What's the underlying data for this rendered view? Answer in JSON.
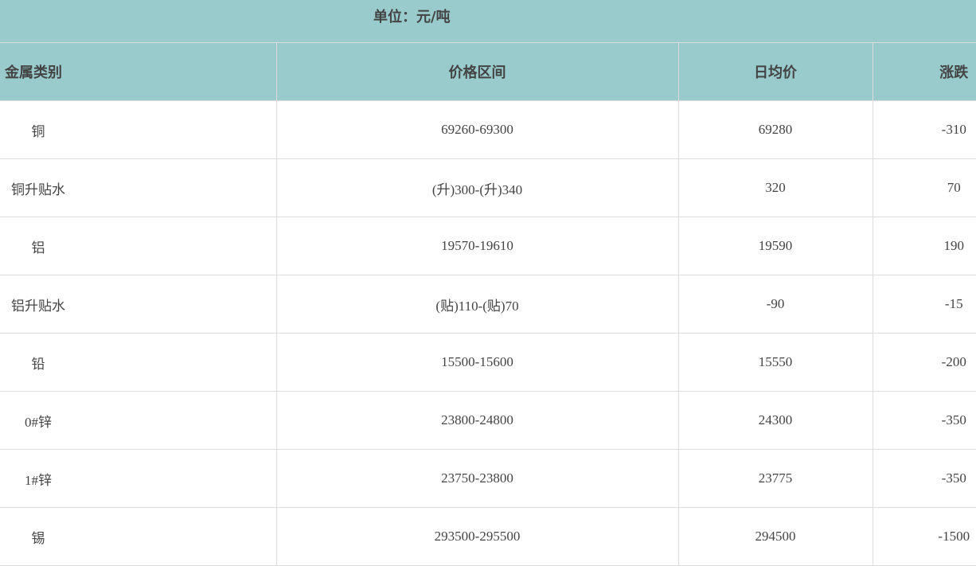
{
  "unit_label": "单位：元/吨",
  "headers": [
    "金属类别",
    "价格区间",
    "日均价",
    "涨跌"
  ],
  "rows": [
    [
      "铜",
      "69260-69300",
      "69280",
      "-310"
    ],
    [
      "铜升贴水",
      "(升)300-(升)340",
      "320",
      "70"
    ],
    [
      "铝",
      "19570-19610",
      "19590",
      "190"
    ],
    [
      "铝升贴水",
      "(贴)110-(贴)70",
      "-90",
      "-15"
    ],
    [
      "铅",
      "15500-15600",
      "15550",
      "-200"
    ],
    [
      "0#锌",
      "23800-24800",
      "24300",
      "-350"
    ],
    [
      "1#锌",
      "23750-23800",
      "23775",
      "-350"
    ],
    [
      "锡",
      "293500-295500",
      "294500",
      "-1500"
    ]
  ],
  "colors": {
    "header_bg": "#99cbcc",
    "border": "#dddddd",
    "text": "#444444"
  }
}
